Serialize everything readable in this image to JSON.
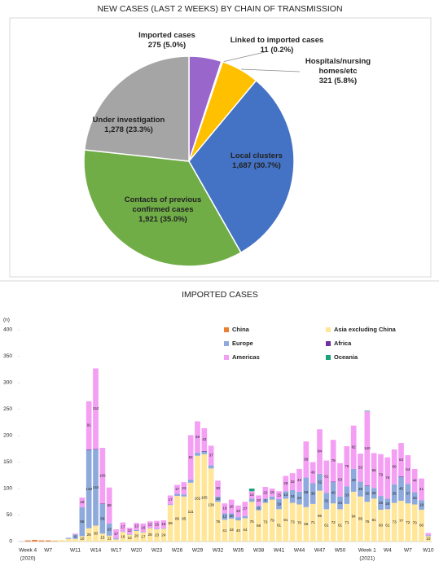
{
  "chart_data": [
    {
      "type": "pie",
      "title": "NEW CASES (LAST 2 WEEKS) BY CHAIN OF TRANSMISSION",
      "categories": [
        "Imported cases",
        "Linked to imported cases",
        "Hospitals/nursing homes/etc",
        "Local clusters",
        "Contacts of previous confirmed cases",
        "Under investigation"
      ],
      "values": [
        275,
        11,
        321,
        1687,
        1921,
        1278
      ],
      "value_labels": [
        "275 (5.0%)",
        "11 (0.2%)",
        "321 (5.8%)",
        "1,687 (30.7%)",
        "1,921 (35.0%)",
        "1,278 (23.3%)"
      ],
      "colors": [
        "#9966cc",
        "#f2f2f2",
        "#ffc000",
        "#4472c4",
        "#70ad47",
        "#a5a5a5"
      ]
    },
    {
      "type": "bar",
      "stacked": true,
      "title": "IMPORTED CASES",
      "ylabel": "(n)",
      "categories": [
        "Week 4",
        null,
        null,
        "W7",
        null,
        null,
        null,
        "W11",
        null,
        null,
        "W14",
        null,
        null,
        "W17",
        null,
        null,
        "W20",
        null,
        null,
        "W23",
        null,
        null,
        "W26",
        null,
        null,
        "W29",
        null,
        null,
        "W32",
        null,
        null,
        "W35",
        null,
        null,
        "W38",
        null,
        null,
        "W41",
        null,
        null,
        "W44",
        null,
        null,
        "W47",
        null,
        null,
        "W50",
        null,
        null,
        null,
        "Week 1",
        null,
        null,
        "W4",
        null,
        null,
        "W7",
        null,
        null,
        "W10"
      ],
      "category_years": [
        "(2020)",
        null,
        null,
        null,
        null,
        null,
        null,
        null,
        null,
        null,
        null,
        null,
        null,
        null,
        null,
        null,
        null,
        null,
        null,
        null,
        null,
        null,
        null,
        null,
        null,
        null,
        null,
        null,
        null,
        null,
        null,
        null,
        null,
        null,
        null,
        null,
        null,
        null,
        null,
        null,
        null,
        null,
        null,
        null,
        null,
        null,
        null,
        null,
        null,
        null,
        "(2021)",
        null,
        null,
        null,
        null,
        null,
        null,
        null,
        null,
        null
      ],
      "series": [
        {
          "name": "China",
          "color": "#ed7d31",
          "values": [
            2,
            3,
            2,
            2,
            1,
            0,
            0,
            0,
            0,
            0,
            0,
            0,
            0,
            0,
            0,
            0,
            0,
            0,
            0,
            0,
            0,
            0,
            0,
            0,
            0,
            0,
            0,
            0,
            0,
            0,
            0,
            0,
            0,
            0,
            0,
            0,
            0,
            0,
            0,
            0,
            0,
            0,
            0,
            0,
            0,
            0,
            0,
            0,
            0,
            0,
            0,
            0,
            0,
            0,
            0,
            0,
            0,
            0,
            0,
            0
          ]
        },
        {
          "name": "Asia excluding China",
          "color": "#ffe699",
          "values": [
            0,
            0,
            0,
            0,
            1,
            3,
            5,
            5,
            10,
            25,
            30,
            15,
            11,
            4,
            18,
            13,
            20,
            17,
            25,
            23,
            24,
            69,
            86,
            85,
            111,
            162,
            165,
            138,
            75,
            41,
            43,
            40,
            44,
            75,
            59,
            73,
            79,
            61,
            81,
            73,
            70,
            65,
            71,
            96,
            61,
            72,
            61,
            71,
            94,
            85,
            75,
            81,
            60,
            61,
            73,
            77,
            72,
            70,
            60,
            10
          ]
        },
        {
          "name": "Europe",
          "color": "#8ea9db",
          "values": [
            0,
            0,
            0,
            0,
            0,
            0,
            2,
            8,
            55,
            148,
            144,
            56,
            23,
            2,
            1,
            1,
            2,
            1,
            1,
            1,
            1,
            1,
            4,
            4,
            6,
            6,
            5,
            6,
            10,
            12,
            10,
            6,
            4,
            6,
            8,
            8,
            6,
            19,
            14,
            24,
            24,
            56,
            39,
            32,
            31,
            40,
            24,
            33,
            43,
            28,
            30,
            20,
            26,
            20,
            35,
            45,
            37,
            23,
            18,
            2
          ]
        },
        {
          "name": "Africa",
          "color": "#7030a0",
          "values": [
            0,
            0,
            0,
            0,
            0,
            0,
            0,
            0,
            0,
            1,
            1,
            1,
            0,
            0,
            0,
            0,
            0,
            0,
            0,
            0,
            0,
            0,
            0,
            0,
            0,
            0,
            1,
            0,
            0,
            0,
            0,
            0,
            0,
            0,
            0,
            0,
            0,
            0,
            0,
            0,
            0,
            0,
            0,
            0,
            0,
            1,
            0,
            0,
            0,
            0,
            1,
            0,
            0,
            0,
            0,
            1,
            0,
            0,
            0,
            0
          ]
        },
        {
          "name": "Americas",
          "color": "#f49ef4",
          "values": [
            0,
            0,
            0,
            0,
            0,
            0,
            0,
            2,
            18,
            91,
            152,
            105,
            68,
            17,
            17,
            12,
            13,
            16,
            12,
            15,
            15,
            17,
            17,
            23,
            84,
            59,
            43,
            37,
            30,
            19,
            26,
            22,
            27,
            14,
            20,
            22,
            15,
            15,
            29,
            32,
            43,
            68,
            40,
            84,
            61,
            79,
            63,
            76,
            82,
            53,
            140,
            66,
            79,
            78,
            66,
            63,
            54,
            44,
            41,
            4
          ]
        },
        {
          "name": "Oceania",
          "color": "#1aa37a",
          "values": [
            0,
            0,
            0,
            0,
            0,
            0,
            0,
            0,
            0,
            0,
            0,
            0,
            0,
            0,
            0,
            0,
            0,
            0,
            0,
            0,
            0,
            0,
            0,
            0,
            0,
            0,
            0,
            0,
            0,
            0,
            0,
            0,
            0,
            5,
            0,
            0,
            0,
            0,
            0,
            0,
            0,
            0,
            0,
            0,
            0,
            0,
            0,
            0,
            0,
            0,
            1,
            0,
            0,
            0,
            0,
            0,
            0,
            0,
            0,
            0
          ]
        }
      ],
      "ylim": [
        0,
        400
      ],
      "yticks": [
        0,
        50,
        100,
        150,
        200,
        250,
        300,
        350,
        400
      ]
    }
  ]
}
